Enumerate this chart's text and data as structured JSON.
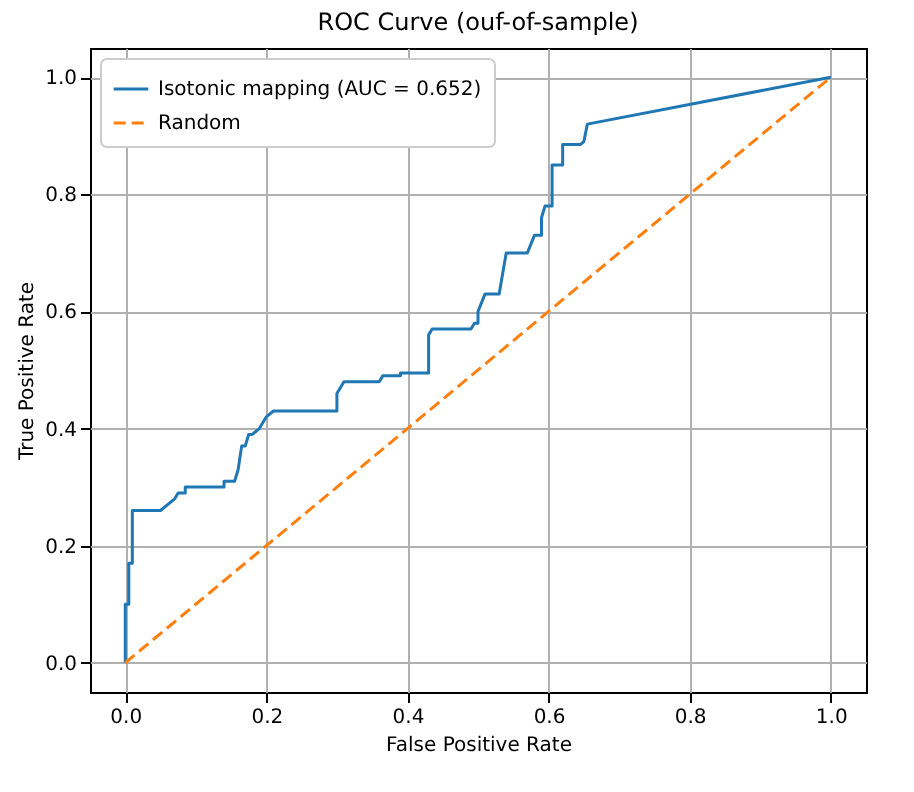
{
  "chart_data": {
    "type": "line",
    "title": "ROC Curve (ouf-of-sample)",
    "xlabel": "False Positive Rate",
    "ylabel": "True Positive Rate",
    "xlim": [
      -0.05,
      1.05
    ],
    "ylim": [
      -0.05,
      1.05
    ],
    "xticks": [
      {
        "value": 0,
        "label": "0.0"
      },
      {
        "value": 0.2,
        "label": "0.2"
      },
      {
        "value": 0.4,
        "label": "0.4"
      },
      {
        "value": 0.6,
        "label": "0.6"
      },
      {
        "value": 0.8,
        "label": "0.8"
      },
      {
        "value": 1,
        "label": "1.0"
      }
    ],
    "yticks": [
      {
        "value": 0,
        "label": "0.0"
      },
      {
        "value": 0.2,
        "label": "0.2"
      },
      {
        "value": 0.4,
        "label": "0.4"
      },
      {
        "value": 0.6,
        "label": "0.6"
      },
      {
        "value": 0.8,
        "label": "0.8"
      },
      {
        "value": 1,
        "label": "1.0"
      }
    ],
    "grid": true,
    "legend": "top left",
    "series": [
      {
        "name": "Isotonic mapping (AUC = 0.652)",
        "color": "#1f77b4",
        "line_style": "solid",
        "x": [
          0,
          0,
          0.005,
          0.005,
          0.01,
          0.01,
          0.05,
          0.07,
          0.075,
          0.085,
          0.085,
          0.14,
          0.14,
          0.155,
          0.16,
          0.165,
          0.17,
          0.175,
          0.18,
          0.19,
          0.2,
          0.21,
          0.3,
          0.3,
          0.31,
          0.36,
          0.365,
          0.39,
          0.39,
          0.43,
          0.43,
          0.435,
          0.49,
          0.495,
          0.5,
          0.5,
          0.51,
          0.53,
          0.54,
          0.57,
          0.58,
          0.59,
          0.59,
          0.595,
          0.605,
          0.605,
          0.62,
          0.62,
          0.645,
          0.65,
          0.655,
          1
        ],
        "values": [
          0,
          0.1,
          0.1,
          0.17,
          0.17,
          0.26,
          0.26,
          0.28,
          0.29,
          0.29,
          0.3,
          0.3,
          0.31,
          0.31,
          0.33,
          0.37,
          0.37,
          0.39,
          0.39,
          0.4,
          0.42,
          0.43,
          0.43,
          0.46,
          0.48,
          0.48,
          0.49,
          0.49,
          0.495,
          0.495,
          0.56,
          0.57,
          0.57,
          0.58,
          0.58,
          0.6,
          0.63,
          0.63,
          0.7,
          0.7,
          0.73,
          0.73,
          0.76,
          0.78,
          0.78,
          0.85,
          0.85,
          0.885,
          0.885,
          0.89,
          0.92,
          1
        ]
      },
      {
        "name": "Random",
        "color": "#ff7f0e",
        "line_style": "dashed",
        "x": [
          0,
          1
        ],
        "values": [
          0,
          1
        ]
      }
    ]
  }
}
